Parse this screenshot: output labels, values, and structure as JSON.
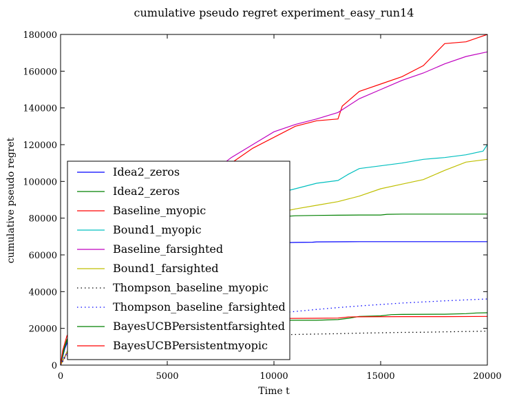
{
  "chart_data": {
    "type": "line",
    "title": "cumulative pseudo regret experiment_easy_run14",
    "xlabel": "Time t",
    "ylabel": "cumulative pseudo regret",
    "xlim": [
      0,
      20000
    ],
    "ylim": [
      0,
      180000
    ],
    "xticks": [
      0,
      5000,
      10000,
      15000,
      20000
    ],
    "yticks": [
      0,
      20000,
      40000,
      60000,
      80000,
      100000,
      120000,
      140000,
      160000,
      180000
    ],
    "grid": false,
    "legend_position": "lower-left",
    "series": [
      {
        "name": "Idea2_zeros",
        "color": "#0000ff",
        "dash": "solid",
        "x": [
          0,
          200,
          500,
          1000,
          2000,
          3000,
          4000,
          5000,
          6000,
          7000,
          8000,
          9000,
          10000,
          11000,
          11800,
          12000,
          14000,
          16000,
          18000,
          20000
        ],
        "y": [
          0,
          9000,
          18000,
          28000,
          38000,
          46000,
          51000,
          55000,
          58500,
          61000,
          63500,
          65500,
          66500,
          66800,
          66900,
          67100,
          67200,
          67200,
          67200,
          67200
        ]
      },
      {
        "name": "Idea2_zeros",
        "color": "#008000",
        "dash": "solid",
        "x": [
          0,
          200,
          500,
          1000,
          2000,
          3000,
          4000,
          5000,
          6000,
          7000,
          8000,
          9000,
          10000,
          11000,
          12000,
          13000,
          14000,
          15000,
          15300,
          16000,
          18000,
          20000
        ],
        "y": [
          0,
          10000,
          20000,
          32000,
          44000,
          53000,
          60000,
          65000,
          69500,
          73000,
          76000,
          78500,
          80500,
          81300,
          81500,
          81600,
          81700,
          81700,
          82100,
          82200,
          82200,
          82200
        ]
      },
      {
        "name": "Baseline_myopic",
        "color": "#ff0000",
        "dash": "solid",
        "x": [
          0,
          1000,
          2000,
          3000,
          4000,
          5000,
          6000,
          7000,
          8000,
          9000,
          10000,
          11000,
          12000,
          13000,
          13200,
          14000,
          15000,
          16000,
          17000,
          17500,
          18000,
          19000,
          19500,
          20000
        ],
        "y": [
          0,
          22000,
          42000,
          58000,
          70000,
          80000,
          90000,
          100000,
          110000,
          118000,
          124000,
          130000,
          133000,
          134000,
          141000,
          149000,
          153000,
          157000,
          163000,
          169000,
          175000,
          176000,
          178000,
          180000
        ]
      },
      {
        "name": "Bound1_myopic",
        "color": "#00bfbf",
        "dash": "solid",
        "x": [
          0,
          500,
          1000,
          2000,
          3000,
          4000,
          5000,
          6000,
          7000,
          8000,
          9000,
          10000,
          11000,
          12000,
          13000,
          13500,
          14000,
          15000,
          16000,
          17000,
          18000,
          19000,
          19800,
          20000
        ],
        "y": [
          0,
          12000,
          22000,
          36000,
          48000,
          58000,
          67000,
          75000,
          81000,
          86000,
          90000,
          93000,
          96000,
          99000,
          100500,
          104000,
          107000,
          108500,
          110000,
          112000,
          113000,
          114500,
          116500,
          120000
        ]
      },
      {
        "name": "Baseline_farsighted",
        "color": "#bf00bf",
        "dash": "solid",
        "x": [
          0,
          1000,
          2000,
          3000,
          4000,
          5000,
          6000,
          7000,
          8000,
          9000,
          10000,
          11000,
          12000,
          13000,
          14000,
          15000,
          16000,
          17000,
          18000,
          19000,
          20000
        ],
        "y": [
          0,
          22000,
          42000,
          58000,
          71000,
          82000,
          93000,
          104000,
          113000,
          120000,
          127000,
          131000,
          134000,
          137500,
          145000,
          150000,
          155000,
          159000,
          164000,
          168000,
          170500
        ]
      },
      {
        "name": "Bound1_farsighted",
        "color": "#bfbf00",
        "dash": "solid",
        "x": [
          0,
          500,
          1000,
          2000,
          3000,
          4000,
          5000,
          6000,
          7000,
          8000,
          9000,
          10000,
          11000,
          12000,
          13000,
          14000,
          15000,
          16000,
          17000,
          18000,
          19000,
          20000
        ],
        "y": [
          0,
          12000,
          22000,
          36000,
          47000,
          56000,
          63000,
          70000,
          75000,
          79000,
          81500,
          82500,
          85000,
          87000,
          89000,
          92000,
          96000,
          98500,
          101000,
          106000,
          110500,
          112000
        ]
      },
      {
        "name": "Thompson_baseline_myopic",
        "color": "#000000",
        "dash": "dotted",
        "x": [
          0,
          200,
          500,
          1000,
          2000,
          3000,
          4000,
          5000,
          6000,
          7000,
          8000,
          9000,
          10000,
          11000,
          12000,
          13000,
          14000,
          15000,
          16000,
          17000,
          18000,
          19000,
          20000
        ],
        "y": [
          0,
          4000,
          7000,
          9500,
          11500,
          13000,
          14000,
          14800,
          15300,
          15700,
          16000,
          16300,
          16500,
          16700,
          16900,
          17100,
          17400,
          17600,
          17800,
          17900,
          18100,
          18300,
          18500
        ]
      },
      {
        "name": "Thompson_baseline_farsighted",
        "color": "#0000ff",
        "dash": "dotted",
        "x": [
          0,
          200,
          500,
          1000,
          2000,
          3000,
          4000,
          5000,
          6000,
          7000,
          8000,
          9000,
          10000,
          11000,
          12000,
          13000,
          14000,
          15000,
          16000,
          17000,
          18000,
          19000,
          20000
        ],
        "y": [
          0,
          5000,
          9000,
          12500,
          16000,
          18500,
          20500,
          22000,
          23500,
          24800,
          26000,
          27000,
          28000,
          29200,
          30300,
          31300,
          32200,
          33000,
          33800,
          34400,
          35000,
          35500,
          36000
        ]
      },
      {
        "name": "BayesUCBPersistentfarsighted",
        "color": "#008000",
        "dash": "solid",
        "x": [
          0,
          100,
          300,
          600,
          1000,
          2000,
          4000,
          6000,
          8000,
          10000,
          11000,
          12000,
          13000,
          13500,
          14000,
          15000,
          15500,
          16000,
          18000,
          19000,
          19500,
          20000
        ],
        "y": [
          0,
          7000,
          14000,
          19000,
          21000,
          22500,
          23500,
          24000,
          24200,
          24300,
          24400,
          24400,
          24800,
          25500,
          26500,
          26800,
          27500,
          27600,
          27700,
          28000,
          28400,
          28500
        ]
      },
      {
        "name": "BayesUCBPersistentmyopic",
        "color": "#ff0000",
        "dash": "solid",
        "x": [
          0,
          100,
          300,
          600,
          1000,
          2000,
          4000,
          6000,
          8000,
          10000,
          12000,
          13000,
          13500,
          14000,
          16000,
          18000,
          20000
        ],
        "y": [
          0,
          8000,
          16000,
          21000,
          23000,
          24500,
          25000,
          25200,
          25300,
          25400,
          25500,
          25600,
          26200,
          26300,
          26400,
          26400,
          26500
        ]
      }
    ]
  }
}
